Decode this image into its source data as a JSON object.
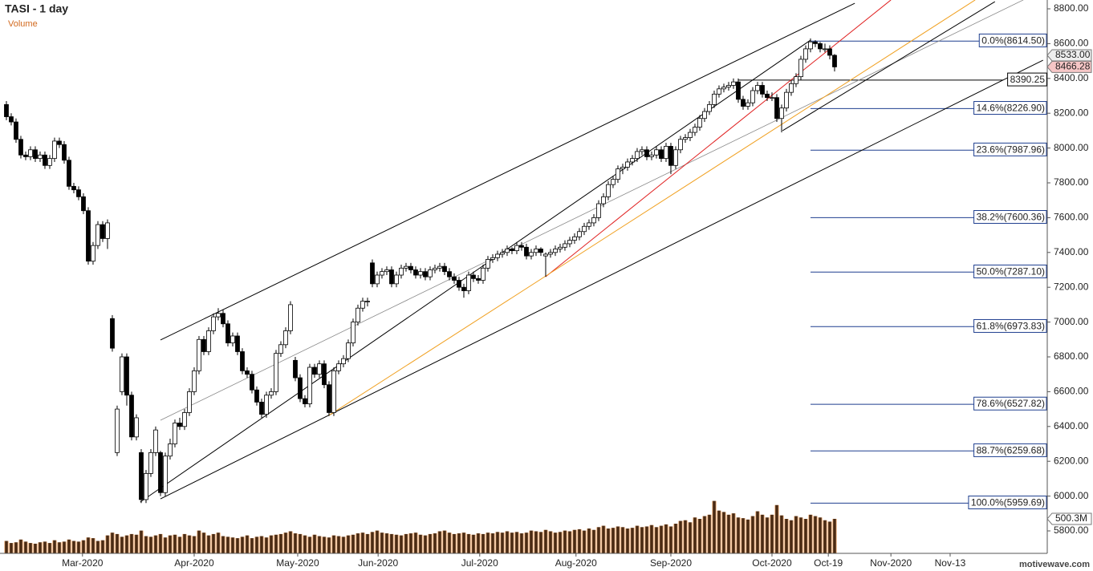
{
  "chart_data": {
    "type": "candlestick",
    "title": "TASI - 1 day",
    "volume_title": "Volume",
    "watermark": "motivewave.com",
    "candles": [
      [
        8250,
        8270,
        8160,
        8180
      ],
      [
        8180,
        8200,
        8130,
        8150
      ],
      [
        8150,
        8170,
        8030,
        8050
      ],
      [
        8050,
        8070,
        7940,
        7960
      ],
      [
        7960,
        7980,
        7930,
        7950
      ],
      [
        7950,
        8010,
        7930,
        7990
      ],
      [
        7990,
        8010,
        7920,
        7940
      ],
      [
        7940,
        7980,
        7920,
        7960
      ],
      [
        7960,
        7980,
        7880,
        7900
      ],
      [
        7900,
        7960,
        7880,
        7940
      ],
      [
        7940,
        8060,
        7920,
        8040
      ],
      [
        8040,
        8060,
        8000,
        8020
      ],
      [
        8020,
        8040,
        7910,
        7930
      ],
      [
        7930,
        7950,
        7760,
        7780
      ],
      [
        7780,
        7800,
        7740,
        7760
      ],
      [
        7760,
        7780,
        7700,
        7720
      ],
      [
        7720,
        7740,
        7620,
        7640
      ],
      [
        7640,
        7660,
        7330,
        7350
      ],
      [
        7350,
        7460,
        7330,
        7440
      ],
      [
        7440,
        7580,
        7420,
        7560
      ],
      [
        7560,
        7580,
        7460,
        7480
      ],
      [
        7480,
        7590,
        7420,
        7570
      ],
      [
        7020,
        7040,
        6830,
        6850
      ],
      [
        6250,
        6520,
        6230,
        6500
      ],
      [
        6600,
        6820,
        6580,
        6800
      ],
      [
        6800,
        6820,
        6520,
        6580
      ],
      [
        6580,
        6600,
        6320,
        6340
      ],
      [
        6340,
        6470,
        6320,
        6450
      ],
      [
        6250,
        6270,
        5960,
        5980
      ],
      [
        5980,
        6150,
        5960,
        6130
      ],
      [
        6130,
        6270,
        6110,
        6250
      ],
      [
        6250,
        6400,
        6230,
        6380
      ],
      [
        6250,
        6260,
        6000,
        6020
      ],
      [
        6020,
        6250,
        6000,
        6230
      ],
      [
        6230,
        6330,
        6210,
        6300
      ],
      [
        6300,
        6440,
        6280,
        6420
      ],
      [
        6420,
        6450,
        6380,
        6400
      ],
      [
        6400,
        6500,
        6380,
        6480
      ],
      [
        6480,
        6620,
        6460,
        6600
      ],
      [
        6600,
        6740,
        6580,
        6720
      ],
      [
        6720,
        6920,
        6700,
        6900
      ],
      [
        6900,
        6920,
        6810,
        6830
      ],
      [
        6830,
        6970,
        6810,
        6950
      ],
      [
        6950,
        7050,
        6930,
        7030
      ],
      [
        7030,
        7080,
        7010,
        7050
      ],
      [
        7050,
        7070,
        6970,
        6990
      ],
      [
        6990,
        7010,
        6860,
        6880
      ],
      [
        6880,
        6940,
        6860,
        6920
      ],
      [
        6920,
        6940,
        6810,
        6830
      ],
      [
        6830,
        6850,
        6700,
        6720
      ],
      [
        6720,
        6740,
        6680,
        6700
      ],
      [
        6700,
        6720,
        6590,
        6610
      ],
      [
        6610,
        6630,
        6520,
        6540
      ],
      [
        6540,
        6560,
        6450,
        6470
      ],
      [
        6470,
        6600,
        6450,
        6580
      ],
      [
        6580,
        6620,
        6560,
        6600
      ],
      [
        6600,
        6840,
        6580,
        6820
      ],
      [
        6820,
        6890,
        6800,
        6870
      ],
      [
        6870,
        6970,
        6850,
        6950
      ],
      [
        6950,
        7120,
        6930,
        7100
      ],
      [
        6780,
        6800,
        6660,
        6680
      ],
      [
        6680,
        6700,
        6540,
        6560
      ],
      [
        6560,
        6580,
        6510,
        6530
      ],
      [
        6530,
        6760,
        6510,
        6740
      ],
      [
        6740,
        6760,
        6680,
        6700
      ],
      [
        6700,
        6780,
        6680,
        6760
      ],
      [
        6760,
        6780,
        6620,
        6640
      ],
      [
        6640,
        6660,
        6460,
        6480
      ],
      [
        6480,
        6740,
        6460,
        6720
      ],
      [
        6720,
        6780,
        6700,
        6760
      ],
      [
        6760,
        6810,
        6740,
        6790
      ],
      [
        6790,
        6900,
        6770,
        6880
      ],
      [
        6880,
        7020,
        6860,
        7000
      ],
      [
        7000,
        7100,
        6980,
        7080
      ],
      [
        7080,
        7140,
        7060,
        7120
      ],
      [
        7120,
        7140,
        7090,
        7120
      ],
      [
        7340,
        7360,
        7200,
        7220
      ],
      [
        7220,
        7290,
        7200,
        7270
      ],
      [
        7270,
        7310,
        7250,
        7290
      ],
      [
        7290,
        7320,
        7270,
        7300
      ],
      [
        7300,
        7320,
        7200,
        7220
      ],
      [
        7220,
        7290,
        7200,
        7270
      ],
      [
        7270,
        7330,
        7250,
        7310
      ],
      [
        7310,
        7340,
        7290,
        7320
      ],
      [
        7320,
        7340,
        7280,
        7300
      ],
      [
        7300,
        7320,
        7250,
        7270
      ],
      [
        7270,
        7310,
        7250,
        7290
      ],
      [
        7290,
        7310,
        7240,
        7260
      ],
      [
        7260,
        7320,
        7240,
        7300
      ],
      [
        7300,
        7330,
        7280,
        7310
      ],
      [
        7310,
        7340,
        7290,
        7320
      ],
      [
        7320,
        7340,
        7270,
        7290
      ],
      [
        7290,
        7310,
        7240,
        7260
      ],
      [
        7260,
        7280,
        7220,
        7240
      ],
      [
        7240,
        7260,
        7180,
        7200
      ],
      [
        7200,
        7220,
        7140,
        7180
      ],
      [
        7180,
        7290,
        7160,
        7270
      ],
      [
        7270,
        7290,
        7230,
        7250
      ],
      [
        7250,
        7270,
        7220,
        7240
      ],
      [
        7240,
        7330,
        7220,
        7310
      ],
      [
        7310,
        7380,
        7290,
        7360
      ],
      [
        7360,
        7390,
        7340,
        7370
      ],
      [
        7370,
        7410,
        7350,
        7390
      ],
      [
        7390,
        7420,
        7370,
        7400
      ],
      [
        7400,
        7440,
        7380,
        7420
      ],
      [
        7420,
        7430,
        7390,
        7410
      ],
      [
        7410,
        7460,
        7390,
        7440
      ],
      [
        7440,
        7460,
        7410,
        7430
      ],
      [
        7430,
        7450,
        7360,
        7380
      ],
      [
        7380,
        7420,
        7360,
        7400
      ],
      [
        7400,
        7440,
        7380,
        7420
      ],
      [
        7420,
        7430,
        7380,
        7400
      ],
      [
        7380,
        7400,
        7260,
        7390
      ],
      [
        7390,
        7420,
        7370,
        7400
      ],
      [
        7400,
        7440,
        7380,
        7420
      ],
      [
        7420,
        7450,
        7400,
        7430
      ],
      [
        7430,
        7470,
        7410,
        7450
      ],
      [
        7450,
        7490,
        7430,
        7470
      ],
      [
        7470,
        7510,
        7450,
        7490
      ],
      [
        7490,
        7540,
        7470,
        7520
      ],
      [
        7520,
        7570,
        7500,
        7550
      ],
      [
        7550,
        7590,
        7530,
        7570
      ],
      [
        7570,
        7620,
        7550,
        7600
      ],
      [
        7600,
        7700,
        7580,
        7680
      ],
      [
        7680,
        7740,
        7660,
        7720
      ],
      [
        7720,
        7810,
        7700,
        7790
      ],
      [
        7790,
        7840,
        7770,
        7820
      ],
      [
        7820,
        7900,
        7800,
        7880
      ],
      [
        7880,
        7910,
        7850,
        7890
      ],
      [
        7890,
        7940,
        7870,
        7920
      ],
      [
        7920,
        7960,
        7900,
        7940
      ],
      [
        7940,
        8000,
        7920,
        7980
      ],
      [
        7980,
        8010,
        7960,
        7990
      ],
      [
        7990,
        8010,
        7930,
        7950
      ],
      [
        7950,
        7980,
        7930,
        7960
      ],
      [
        7960,
        8010,
        7940,
        7990
      ],
      [
        7990,
        8010,
        7920,
        7940
      ],
      [
        7940,
        8030,
        7920,
        8010
      ],
      [
        8010,
        8030,
        7850,
        7900
      ],
      [
        7900,
        8010,
        7880,
        7990
      ],
      [
        7990,
        8070,
        7970,
        8050
      ],
      [
        8050,
        8080,
        8030,
        8060
      ],
      [
        8060,
        8110,
        8040,
        8090
      ],
      [
        8090,
        8140,
        8070,
        8120
      ],
      [
        8120,
        8190,
        8100,
        8170
      ],
      [
        8170,
        8230,
        8150,
        8210
      ],
      [
        8210,
        8270,
        8190,
        8250
      ],
      [
        8250,
        8330,
        8230,
        8310
      ],
      [
        8310,
        8360,
        8290,
        8340
      ],
      [
        8340,
        8370,
        8320,
        8350
      ],
      [
        8350,
        8380,
        8330,
        8360
      ],
      [
        8360,
        8400,
        8340,
        8380
      ],
      [
        8380,
        8400,
        8260,
        8280
      ],
      [
        8280,
        8300,
        8220,
        8240
      ],
      [
        8240,
        8280,
        8220,
        8260
      ],
      [
        8260,
        8350,
        8240,
        8330
      ],
      [
        8330,
        8380,
        8310,
        8360
      ],
      [
        8360,
        8380,
        8290,
        8310
      ],
      [
        8310,
        8330,
        8270,
        8290
      ],
      [
        8290,
        8320,
        8270,
        8290
      ],
      [
        8290,
        8310,
        8150,
        8170
      ],
      [
        8170,
        8250,
        8090,
        8230
      ],
      [
        8230,
        8340,
        8210,
        8320
      ],
      [
        8320,
        8390,
        8300,
        8370
      ],
      [
        8370,
        8430,
        8350,
        8410
      ],
      [
        8410,
        8530,
        8390,
        8510
      ],
      [
        8510,
        8590,
        8490,
        8570
      ],
      [
        8570,
        8630,
        8550,
        8610
      ],
      [
        8610,
        8620,
        8580,
        8600
      ],
      [
        8600,
        8610,
        8550,
        8570
      ],
      [
        8570,
        8600,
        8550,
        8570
      ],
      [
        8570,
        8590,
        8510,
        8533
      ],
      [
        8533,
        8540,
        8440,
        8466.28
      ]
    ],
    "volume": [
      180,
      150,
      160,
      200,
      170,
      150,
      140,
      160,
      170,
      150,
      190,
      160,
      170,
      200,
      180,
      170,
      190,
      230,
      220,
      180,
      190,
      260,
      300,
      280,
      240,
      260,
      280,
      270,
      330,
      250,
      240,
      260,
      280,
      230,
      260,
      270,
      240,
      280,
      260,
      250,
      330,
      300,
      260,
      280,
      300,
      250,
      240,
      230,
      220,
      240,
      260,
      220,
      240,
      250,
      230,
      260,
      270,
      280,
      300,
      320,
      290,
      280,
      260,
      240,
      270,
      250,
      240,
      230,
      260,
      250,
      240,
      260,
      270,
      290,
      300,
      280,
      310,
      330,
      300,
      290,
      280,
      270,
      260,
      280,
      290,
      300,
      270,
      260,
      280,
      290,
      320,
      330,
      300,
      280,
      290,
      300,
      280,
      270,
      290,
      280,
      300,
      290,
      310,
      300,
      320,
      300,
      310,
      290,
      300,
      330,
      320,
      310,
      340,
      320,
      300,
      310,
      330,
      320,
      340,
      350,
      330,
      360,
      340,
      380,
      400,
      360,
      370,
      390,
      380,
      360,
      370,
      400,
      380,
      390,
      410,
      380,
      400,
      420,
      390,
      430,
      470,
      480,
      450,
      520,
      500,
      540,
      560,
      760,
      620,
      600,
      560,
      580,
      520,
      510,
      490,
      540,
      610,
      560,
      520,
      560,
      700,
      550,
      500,
      480,
      540,
      520,
      500,
      560,
      540,
      520,
      480,
      460,
      500.3
    ],
    "volume_color": "#4a2a12",
    "volume_area_color": "#f4c9a4",
    "xlim": [
      -1.33,
      216.17
    ],
    "ylim": [
      5800,
      8800
    ],
    "vlim": [
      0,
      800
    ],
    "xticks": [
      {
        "value": 15.8,
        "label": "Mar-2020"
      },
      {
        "value": 39,
        "label": "Apr-2020"
      },
      {
        "value": 60.5,
        "label": "May-2020"
      },
      {
        "value": 77.2,
        "label": "Jun-2020"
      },
      {
        "value": 98.3,
        "label": "Jul-2020"
      },
      {
        "value": 118.3,
        "label": "Aug-2020"
      },
      {
        "value": 138,
        "label": "Sep-2020"
      },
      {
        "value": 159,
        "label": "Oct-2020"
      },
      {
        "value": 170.7,
        "label": "Oct-19"
      },
      {
        "value": 183.7,
        "label": "Nov-2020"
      },
      {
        "value": 196,
        "label": "Nov-13"
      }
    ],
    "yticks": [
      {
        "value": 5800,
        "label": "5800.00"
      },
      {
        "value": 6000,
        "label": "6000.00"
      },
      {
        "value": 6200,
        "label": "6200.00"
      },
      {
        "value": 6400,
        "label": "6400.00"
      },
      {
        "value": 6600,
        "label": "6600.00"
      },
      {
        "value": 6800,
        "label": "6800.00"
      },
      {
        "value": 7000,
        "label": "7000.00"
      },
      {
        "value": 7200,
        "label": "7200.00"
      },
      {
        "value": 7400,
        "label": "7400.00"
      },
      {
        "value": 7600,
        "label": "7600.00"
      },
      {
        "value": 7800,
        "label": "7800.00"
      },
      {
        "value": 8000,
        "label": "8000.00"
      },
      {
        "value": 8200,
        "label": "8200.00"
      },
      {
        "value": 8400,
        "label": "8400.00"
      },
      {
        "value": 8600,
        "label": "8600.00"
      },
      {
        "value": 8800,
        "label": "8800.00"
      }
    ],
    "price_tags": [
      {
        "value": 8533,
        "label": "8533.00",
        "color": "#eeeeee"
      },
      {
        "value": 8466.28,
        "label": "8466.28",
        "color": "#f6c6c6"
      }
    ],
    "volume_label": {
      "value": 500.3,
      "label": "500.3M"
    },
    "fib_color": "#1f3f8f",
    "fib_start": 167,
    "fib_levels": [
      {
        "value": 8614.5,
        "label": "0.0%(8614.50)"
      },
      {
        "value": 8226.9,
        "label": "14.6%(8226.90)"
      },
      {
        "value": 7987.96,
        "label": "23.6%(7987.96)"
      },
      {
        "value": 7600.36,
        "label": "38.2%(7600.36)"
      },
      {
        "value": 7287.1,
        "label": "50.0%(7287.10)"
      },
      {
        "value": 6973.83,
        "label": "61.8%(6973.83)"
      },
      {
        "value": 6527.82,
        "label": "78.6%(6527.82)"
      },
      {
        "value": 6259.68,
        "label": "88.7%(6259.68)"
      },
      {
        "value": 5959.69,
        "label": "100.0%(5959.69)"
      }
    ],
    "level_line": {
      "value": 8390.25,
      "label": "8390.25",
      "from": 152,
      "to": 207
    },
    "trendlines": [
      {
        "color": "#000000",
        "width": 1,
        "points": [
          [
            32,
            6897
          ],
          [
            176.2,
            8832
          ]
        ]
      },
      {
        "color": "#000000",
        "width": 1,
        "points": [
          [
            32,
            5984
          ],
          [
            215.3,
            8505
          ]
        ]
      },
      {
        "color": "#000000",
        "width": 1,
        "points": [
          [
            27.8,
            5966
          ],
          [
            167,
            8620
          ]
        ]
      },
      {
        "color": "#888888",
        "width": 0.8,
        "points": [
          [
            32,
            6436
          ],
          [
            211.2,
            8851
          ]
        ]
      },
      {
        "color": "#e02020",
        "width": 1,
        "points": [
          [
            112,
            7261
          ],
          [
            183.7,
            8851
          ]
        ]
      },
      {
        "color": "#f0a020",
        "width": 1,
        "points": [
          [
            67,
            6464
          ],
          [
            201.2,
            8851
          ]
        ]
      },
      {
        "color": "#000000",
        "width": 1,
        "points": [
          [
            161.2,
            8100
          ],
          [
            205.3,
            8841
          ]
        ]
      }
    ]
  }
}
